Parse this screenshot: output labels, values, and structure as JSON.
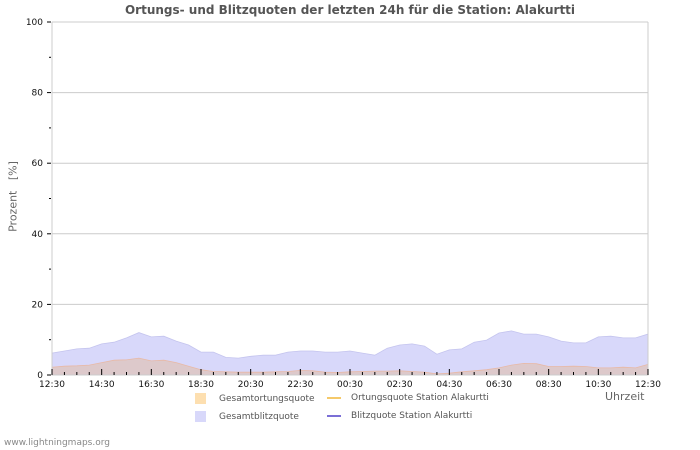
{
  "title": "Ortungs- und Blitzquoten der letzten 24h für die Station: Alakurtti",
  "footer": "www.lightningmaps.org",
  "legend": {
    "items": [
      {
        "label": "Gesamtortungsquote",
        "type": "area",
        "color": "#fddfb0"
      },
      {
        "label": "Ortungsquote Station Alakurtti",
        "type": "line",
        "color": "#f5c96a"
      },
      {
        "label": "Gesamtblitzquote",
        "type": "area",
        "color": "#d8d8fa"
      },
      {
        "label": "Blitzquote Station Alakurtti",
        "type": "line",
        "color": "#7b6fd6"
      }
    ]
  },
  "colors": {
    "blitz_area": "#d8d8fa",
    "blitz_edge": "#c4c4ee",
    "ortung_area": "#ddc9cb",
    "ortung_edge": "#e8b9a6",
    "grid": "#cccccc",
    "axis": "#cccccc"
  },
  "chart_data": {
    "type": "area",
    "title": "Ortungs- und Blitzquoten der letzten 24h für die Station: Alakurtti",
    "xlabel": "Uhrzeit",
    "ylabel": "Prozent   [%]",
    "ylim": [
      0,
      100
    ],
    "yticks": [
      0,
      20,
      40,
      60,
      80,
      100
    ],
    "xtick_labels": [
      "12:30",
      "14:30",
      "16:30",
      "18:30",
      "20:30",
      "22:30",
      "00:30",
      "02:30",
      "04:30",
      "06:30",
      "08:30",
      "10:30",
      "12:30"
    ],
    "grid": true,
    "legend_position": "bottom",
    "x": [
      "12:30",
      "13:00",
      "13:30",
      "14:00",
      "14:30",
      "15:00",
      "15:30",
      "16:00",
      "16:30",
      "17:00",
      "17:30",
      "18:00",
      "18:30",
      "19:00",
      "19:30",
      "20:00",
      "20:30",
      "21:00",
      "21:30",
      "22:00",
      "22:30",
      "23:00",
      "23:30",
      "00:00",
      "00:30",
      "01:00",
      "01:30",
      "02:00",
      "02:30",
      "03:00",
      "03:30",
      "04:00",
      "04:30",
      "05:00",
      "05:30",
      "06:00",
      "06:30",
      "07:00",
      "07:30",
      "08:00",
      "08:30",
      "09:00",
      "09:30",
      "10:00",
      "10:30",
      "11:00",
      "11:30",
      "12:00",
      "12:30"
    ],
    "series": [
      {
        "name": "Gesamtblitzquote",
        "values": [
          6.2,
          6.8,
          7.4,
          7.6,
          8.8,
          9.3,
          10.5,
          12.0,
          10.8,
          11.0,
          9.6,
          8.5,
          6.5,
          6.5,
          5.0,
          4.8,
          5.3,
          5.6,
          5.6,
          6.5,
          6.8,
          6.8,
          6.5,
          6.5,
          6.8,
          6.2,
          5.6,
          7.6,
          8.5,
          8.8,
          8.2,
          5.9,
          7.1,
          7.4,
          9.3,
          9.9,
          11.9,
          12.5,
          11.6,
          11.6,
          10.8,
          9.6,
          9.1,
          9.1,
          10.8,
          11.0,
          10.5,
          10.5,
          11.6
        ]
      },
      {
        "name": "Gesamtortungsquote",
        "values": [
          2.2,
          2.5,
          2.6,
          2.8,
          3.5,
          4.2,
          4.3,
          4.8,
          4.0,
          4.2,
          3.5,
          2.5,
          1.5,
          1.0,
          0.9,
          0.8,
          0.8,
          0.8,
          0.9,
          1.0,
          1.3,
          1.2,
          0.8,
          0.7,
          0.9,
          1.0,
          1.1,
          1.1,
          1.2,
          1.0,
          0.8,
          0.3,
          0.5,
          0.9,
          1.2,
          1.5,
          2.0,
          2.8,
          3.3,
          3.2,
          2.4,
          2.4,
          2.5,
          2.4,
          2.0,
          2.0,
          2.2,
          2.0,
          3.0
        ]
      },
      {
        "name": "Ortungsquote Station Alakurtti",
        "values": []
      },
      {
        "name": "Blitzquote Station Alakurtti",
        "values": []
      }
    ]
  }
}
